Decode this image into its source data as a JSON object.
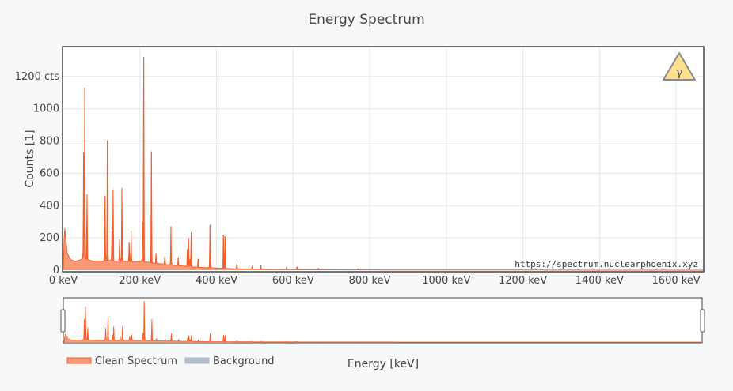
{
  "chart_data": {
    "type": "area",
    "title": "Energy Spectrum",
    "xlabel": "Energy [keV]",
    "ylabel": "Counts [1]",
    "xlim": [
      0,
      1670
    ],
    "ylim": [
      0,
      1380
    ],
    "grid": true,
    "x_ticks": [
      {
        "value": 0,
        "label": "0 keV"
      },
      {
        "value": 200,
        "label": "200 keV"
      },
      {
        "value": 400,
        "label": "400 keV"
      },
      {
        "value": 600,
        "label": "600 keV"
      },
      {
        "value": 800,
        "label": "800 keV"
      },
      {
        "value": 1000,
        "label": "1000 keV"
      },
      {
        "value": 1200,
        "label": "1200 keV"
      },
      {
        "value": 1400,
        "label": "1400 keV"
      },
      {
        "value": 1600,
        "label": "1600 keV"
      }
    ],
    "y_ticks": [
      {
        "value": 0,
        "label": "0"
      },
      {
        "value": 200,
        "label": "200"
      },
      {
        "value": 400,
        "label": "400"
      },
      {
        "value": 600,
        "label": "600"
      },
      {
        "value": 800,
        "label": "800"
      },
      {
        "value": 1000,
        "label": "1000"
      },
      {
        "value": 1200,
        "label": "1200 cts"
      }
    ],
    "legend": {
      "placement": "bottom-left"
    },
    "series": [
      {
        "name": "Clean Spectrum",
        "color": "#f4602a",
        "fill": "#f89a78",
        "continuum": [
          [
            0,
            0
          ],
          [
            3,
            290
          ],
          [
            6,
            200
          ],
          [
            10,
            110
          ],
          [
            15,
            80
          ],
          [
            20,
            65
          ],
          [
            30,
            55
          ],
          [
            40,
            60
          ],
          [
            50,
            70
          ],
          [
            55,
            90
          ],
          [
            60,
            70
          ],
          [
            70,
            60
          ],
          [
            80,
            55
          ],
          [
            100,
            55
          ],
          [
            120,
            60
          ],
          [
            140,
            55
          ],
          [
            160,
            55
          ],
          [
            180,
            52
          ],
          [
            200,
            55
          ],
          [
            220,
            50
          ],
          [
            240,
            42
          ],
          [
            260,
            38
          ],
          [
            280,
            32
          ],
          [
            300,
            28
          ],
          [
            320,
            24
          ],
          [
            340,
            20
          ],
          [
            360,
            17
          ],
          [
            380,
            15
          ],
          [
            400,
            13
          ],
          [
            420,
            11
          ],
          [
            440,
            9
          ],
          [
            460,
            8
          ],
          [
            480,
            7
          ],
          [
            500,
            6
          ],
          [
            550,
            5
          ],
          [
            600,
            4
          ],
          [
            650,
            3
          ],
          [
            700,
            3
          ],
          [
            750,
            2
          ],
          [
            800,
            2
          ],
          [
            900,
            1
          ],
          [
            1000,
            1
          ],
          [
            1200,
            1
          ],
          [
            1400,
            0
          ],
          [
            1600,
            0
          ],
          [
            1670,
            0
          ]
        ],
        "peaks": [
          {
            "x": 53,
            "y": 730
          },
          {
            "x": 56,
            "y": 1130
          },
          {
            "x": 62,
            "y": 470
          },
          {
            "x": 109,
            "y": 460
          },
          {
            "x": 115,
            "y": 805
          },
          {
            "x": 127,
            "y": 240
          },
          {
            "x": 130,
            "y": 500
          },
          {
            "x": 147,
            "y": 190
          },
          {
            "x": 153,
            "y": 510
          },
          {
            "x": 172,
            "y": 170
          },
          {
            "x": 177,
            "y": 245
          },
          {
            "x": 207,
            "y": 300
          },
          {
            "x": 210,
            "y": 1320
          },
          {
            "x": 230,
            "y": 735
          },
          {
            "x": 242,
            "y": 105
          },
          {
            "x": 265,
            "y": 85
          },
          {
            "x": 281,
            "y": 270
          },
          {
            "x": 300,
            "y": 80
          },
          {
            "x": 324,
            "y": 130
          },
          {
            "x": 327,
            "y": 200
          },
          {
            "x": 331,
            "y": 70
          },
          {
            "x": 334,
            "y": 235
          },
          {
            "x": 352,
            "y": 70
          },
          {
            "x": 383,
            "y": 280
          },
          {
            "x": 418,
            "y": 220
          },
          {
            "x": 422,
            "y": 210
          },
          {
            "x": 453,
            "y": 40
          },
          {
            "x": 493,
            "y": 25
          },
          {
            "x": 516,
            "y": 30
          },
          {
            "x": 583,
            "y": 18
          },
          {
            "x": 610,
            "y": 22
          },
          {
            "x": 666,
            "y": 10
          },
          {
            "x": 770,
            "y": 8
          }
        ]
      },
      {
        "name": "Background",
        "color": "#b3bccb"
      }
    ],
    "annotation": "https://spectrum.nuclearphoenix.xyz",
    "badge_symbol": "γ",
    "badge_color": "#fce08e"
  }
}
